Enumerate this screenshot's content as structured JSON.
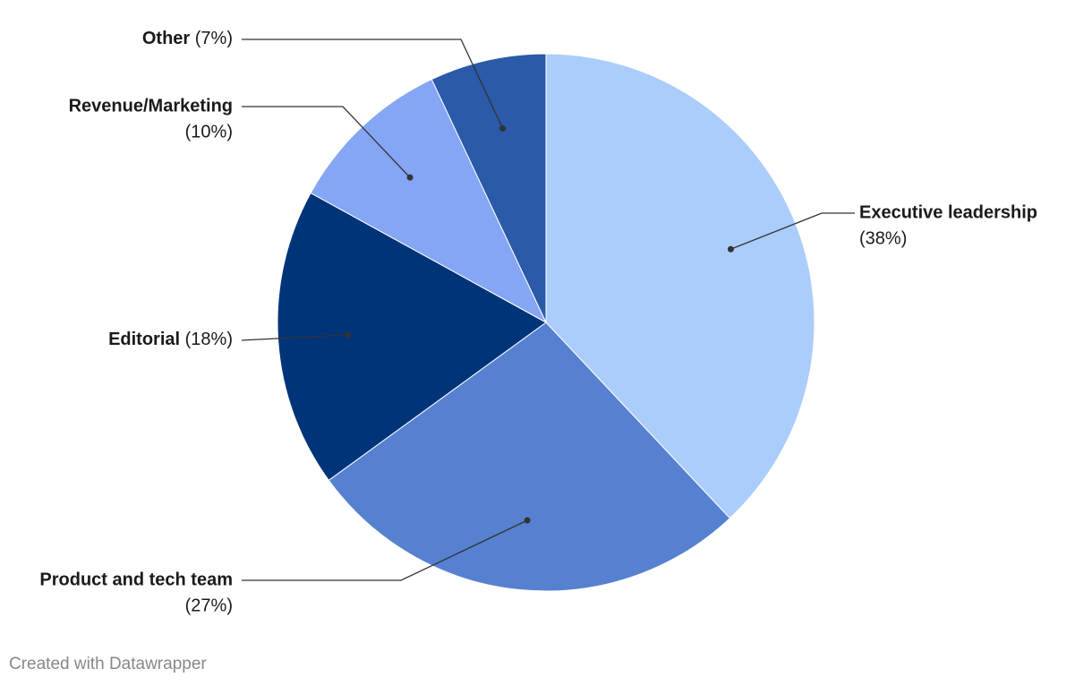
{
  "chart_data": {
    "type": "pie",
    "categories": [
      "Executive leadership",
      "Product and tech team",
      "Editorial",
      "Revenue/Marketing",
      "Other"
    ],
    "values": [
      38,
      27,
      18,
      10,
      7
    ],
    "value_labels": [
      "(38%)",
      "(27%)",
      "(18%)",
      "(10%)",
      "(7%)"
    ],
    "colors": [
      "#abcdfb",
      "#5681d0",
      "#003479",
      "#84a6f4",
      "#2a5aa8"
    ],
    "credit": "Created with Datawrapper"
  }
}
